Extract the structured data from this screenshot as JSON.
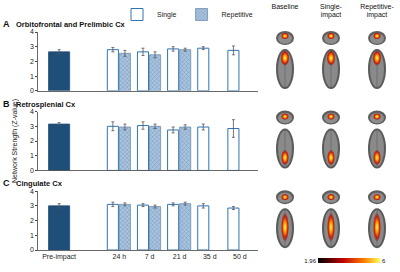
{
  "y_label": "Network Strength (Z-value)",
  "chart_data": [
    {
      "type": "bar",
      "panel": "A",
      "title": "Orbitofrontal and Prelimbic Cx",
      "categories": [
        "Pre-impact",
        null,
        "24 h",
        "7 d",
        "21 d",
        "35 d",
        "50 d"
      ],
      "series": [
        {
          "color": "#1f4e79",
          "marker": "solid",
          "values": [
            2.65,
            null,
            null,
            null,
            null,
            null,
            null
          ],
          "errors": [
            0.15,
            null,
            null,
            null,
            null,
            null,
            null
          ]
        },
        {
          "name": "Single",
          "color": "#2e75b6",
          "marker": "hollow",
          "values": [
            null,
            null,
            2.8,
            2.65,
            2.85,
            2.9,
            2.75
          ],
          "errors": [
            null,
            null,
            0.15,
            0.25,
            0.15,
            0.1,
            0.3
          ]
        },
        {
          "name": "Repetitive",
          "color": "#a9c4df",
          "marker": "hatched",
          "values": [
            null,
            null,
            2.55,
            2.45,
            2.8,
            null,
            null
          ],
          "errors": [
            null,
            null,
            0.2,
            0.2,
            0.1,
            null,
            null
          ]
        }
      ],
      "ylim": [
        0,
        4
      ],
      "yticks": [
        0,
        1,
        2,
        3,
        4
      ],
      "grid": false,
      "legend": "top right",
      "tick_labels": "y"
    },
    {
      "type": "bar",
      "panel": "B",
      "title": "Retrosplenial Cx",
      "categories": [
        "Pre-impact",
        null,
        "24 h",
        "7 d",
        "21 d",
        "35 d",
        "50 d"
      ],
      "series": [
        {
          "color": "#1f4e79",
          "marker": "solid",
          "values": [
            3.15,
            null,
            null,
            null,
            null,
            null,
            null
          ],
          "errors": [
            0.1,
            null,
            null,
            null,
            null,
            null,
            null
          ]
        },
        {
          "name": "Single",
          "color": "#2e75b6",
          "marker": "hollow",
          "values": [
            null,
            null,
            3.0,
            3.05,
            2.75,
            2.95,
            2.85
          ],
          "errors": [
            null,
            null,
            0.3,
            0.25,
            0.2,
            0.2,
            0.6
          ]
        },
        {
          "name": "Repetitive",
          "color": "#a9c4df",
          "marker": "hatched",
          "values": [
            null,
            null,
            2.95,
            3.0,
            2.95,
            null,
            null
          ],
          "errors": [
            null,
            null,
            0.2,
            0.15,
            0.15,
            null,
            null
          ]
        }
      ],
      "ylim": [
        0,
        4
      ],
      "yticks": [
        0,
        1,
        2,
        3,
        4
      ],
      "grid": false,
      "tick_labels": "y"
    },
    {
      "type": "bar",
      "panel": "C",
      "title": "Cingulate Cx",
      "categories": [
        "Pre-impact",
        null,
        "24 h",
        "7 d",
        "21 d",
        "35 d",
        "50 d"
      ],
      "series": [
        {
          "color": "#1f4e79",
          "marker": "solid",
          "values": [
            3.0,
            null,
            null,
            null,
            null,
            null,
            null
          ],
          "errors": [
            0.15,
            null,
            null,
            null,
            null,
            null,
            null
          ]
        },
        {
          "name": "Single",
          "color": "#2e75b6",
          "marker": "hollow",
          "values": [
            null,
            null,
            3.1,
            3.05,
            3.1,
            3.0,
            2.85
          ],
          "errors": [
            null,
            null,
            0.15,
            0.1,
            0.1,
            0.15,
            0.1
          ]
        },
        {
          "name": "Repetitive",
          "color": "#a9c4df",
          "marker": "hatched",
          "values": [
            null,
            null,
            3.1,
            2.95,
            3.15,
            null,
            null
          ],
          "errors": [
            null,
            null,
            0.1,
            0.1,
            0.1,
            null,
            null
          ]
        }
      ],
      "ylim": [
        0,
        4
      ],
      "yticks": [
        0,
        1,
        2,
        3,
        4
      ],
      "grid": false,
      "tick_labels": true
    }
  ],
  "images": {
    "columns": [
      [
        "Baseline"
      ],
      [
        "Single-",
        "impact"
      ],
      [
        "Repetitive-",
        "impact"
      ]
    ],
    "colorbar": {
      "range": [
        1.96,
        6
      ],
      "ticks": [
        1.96,
        6
      ]
    }
  }
}
